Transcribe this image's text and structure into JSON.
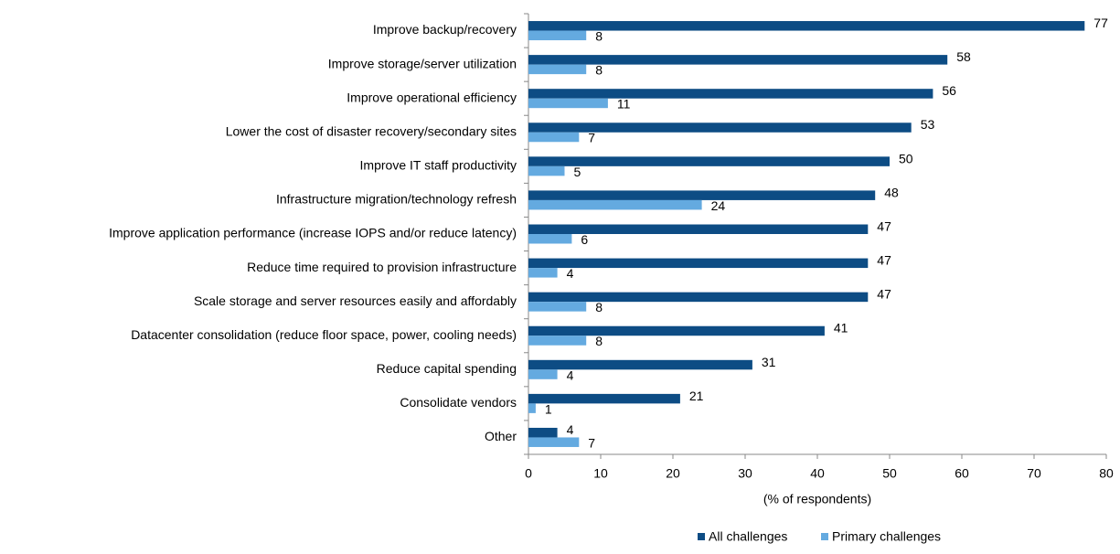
{
  "chart_data": {
    "type": "hbar",
    "categories": [
      "Improve backup/recovery",
      "Improve storage/server utilization",
      "Improve operational efficiency",
      "Lower the cost of disaster recovery/secondary sites",
      "Improve IT staff productivity",
      "Infrastructure migration/technology refresh",
      "Improve application performance (increase IOPS and/or reduce latency)",
      "Reduce time required to provision infrastructure",
      "Scale storage and server resources easily and affordably",
      "Datacenter consolidation (reduce floor space, power, cooling needs)",
      "Reduce capital spending",
      "Consolidate vendors",
      "Other"
    ],
    "series": [
      {
        "name": "All challenges",
        "color": "#0d4c84",
        "values": [
          77,
          58,
          56,
          53,
          50,
          48,
          47,
          47,
          47,
          41,
          31,
          21,
          4
        ]
      },
      {
        "name": "Primary challenges",
        "color": "#64aae0",
        "values": [
          8,
          8,
          11,
          7,
          5,
          24,
          6,
          4,
          8,
          8,
          4,
          1,
          7
        ]
      }
    ],
    "xlabel": "(% of respondents)",
    "xlim": [
      0,
      80
    ],
    "xticks": [
      0,
      10,
      20,
      30,
      40,
      50,
      60,
      70,
      80
    ],
    "legend": "bottom"
  }
}
